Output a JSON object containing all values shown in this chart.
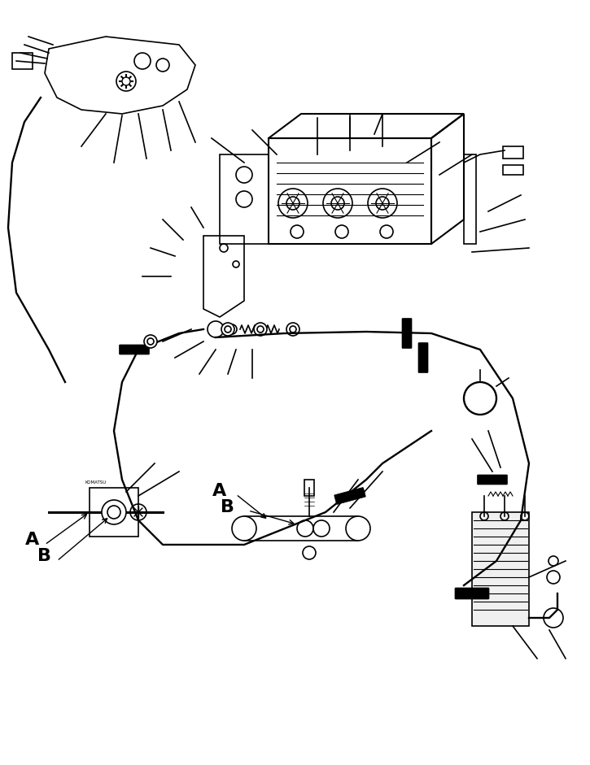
{
  "background_color": "#ffffff",
  "line_color": "#000000",
  "figsize": [
    7.25,
    9.41
  ],
  "dpi": 100,
  "title": "",
  "label_A1": "A",
  "label_B1": "B",
  "label_A2": "A",
  "label_B2": "B"
}
